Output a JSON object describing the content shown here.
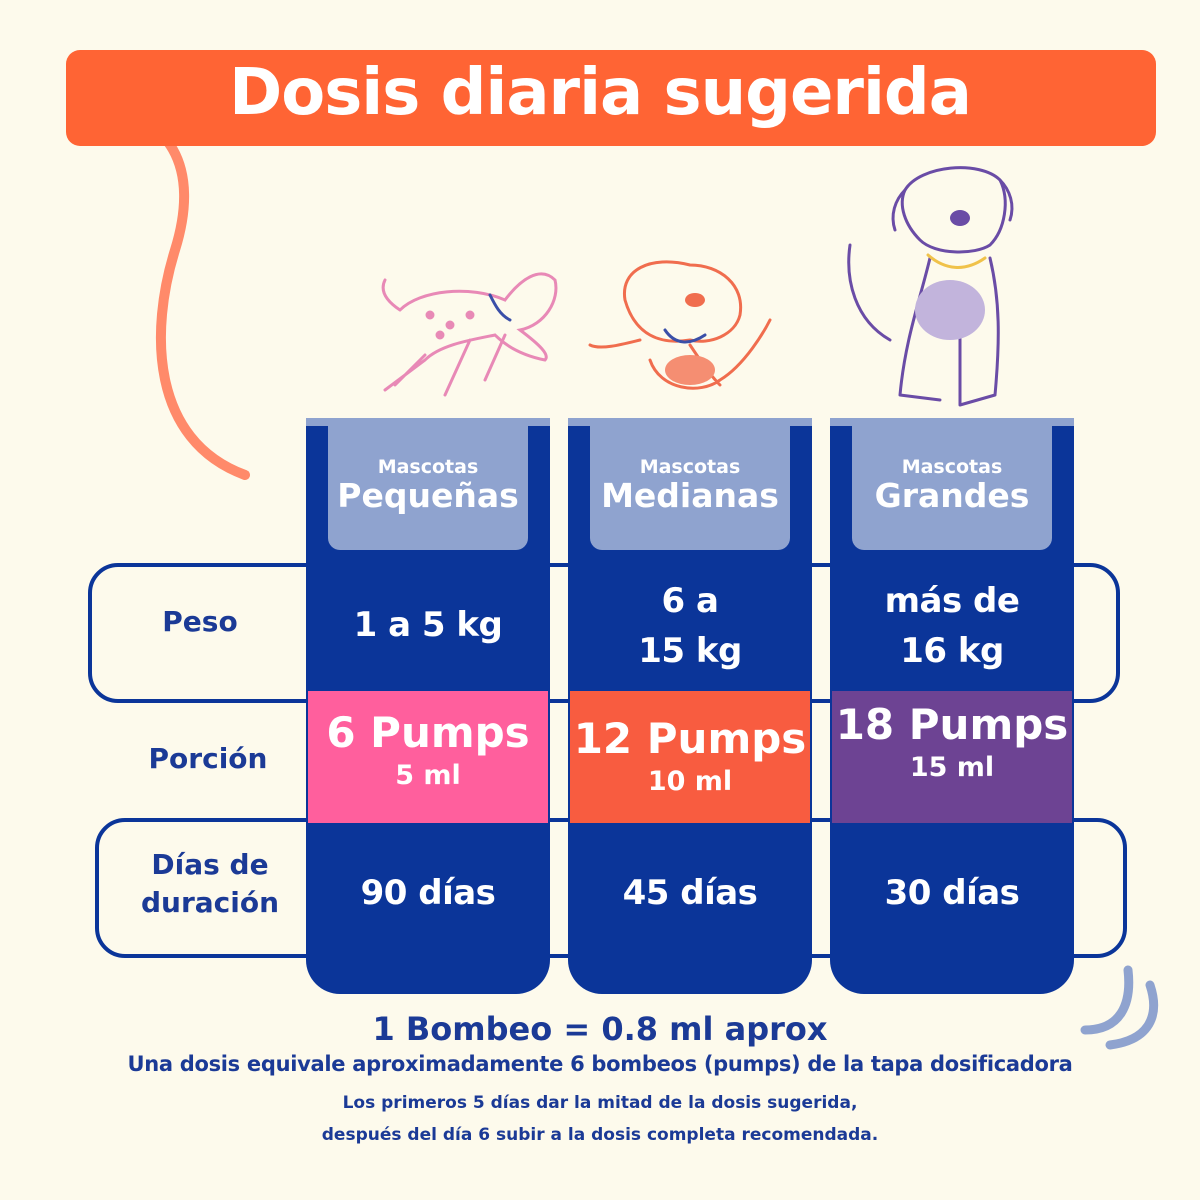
{
  "title": "Dosis diaria sugerida",
  "colors": {
    "orange": "#ff6434",
    "navy": "#0b3599",
    "pink": "#ff5f9d",
    "coral": "#f85c40",
    "purple": "#6d4393",
    "cream": "#fdfaec",
    "slate": "#8fa3cf"
  },
  "columns": [
    {
      "small": "Mascotas",
      "size": "Pequeñas",
      "weight_line1": "1 a 5 kg",
      "weight_line2": "",
      "pumps": "6 Pumps",
      "ml": "5 ml",
      "days": "90 días"
    },
    {
      "small": "Mascotas",
      "size": "Medianas",
      "weight_line1": "6 a",
      "weight_line2": "15 kg",
      "pumps": "12 Pumps",
      "ml": "10 ml",
      "days": "45 días"
    },
    {
      "small": "Mascotas",
      "size": "Grandes",
      "weight_line1": "más de",
      "weight_line2": "16 kg",
      "pumps": "18 Pumps",
      "ml": "15 ml",
      "days": "30 días"
    }
  ],
  "rows": {
    "peso": "Peso",
    "porcion": "Porción",
    "dias_line1": "Días de",
    "dias_line2": "duración"
  },
  "footer": {
    "equivalence": "1 Bombeo = 0.8 ml aprox",
    "note": "Una dosis equivale aproximadamente 6 bombeos (pumps) de la tapa dosificadora",
    "instruction_line1": "Los primeros 5 días dar la mitad de la dosis sugerida,",
    "instruction_line2": "después del día 6 subir a la dosis completa recomendada."
  },
  "illustrations": [
    "small-dog-jumping",
    "medium-dog-playing",
    "large-dog-sitting"
  ]
}
